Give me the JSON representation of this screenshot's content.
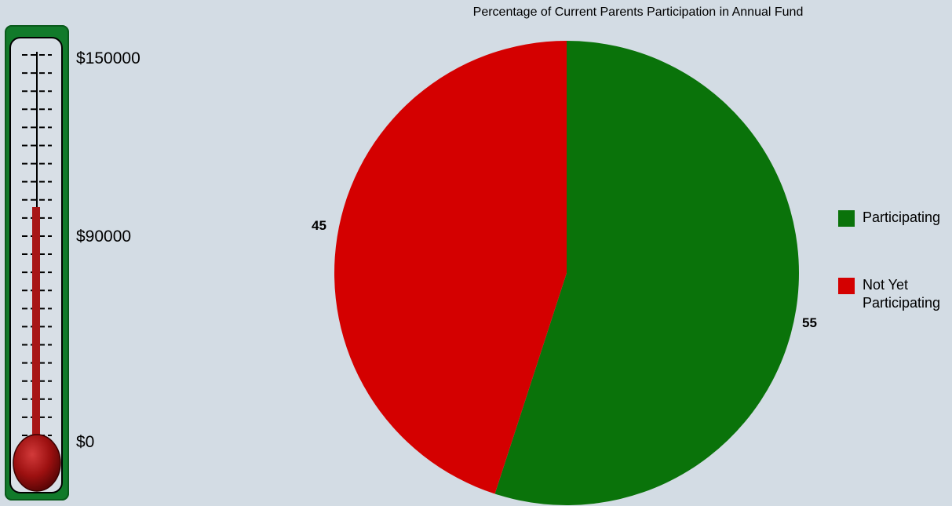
{
  "thermometer": {
    "max_label": "$150000",
    "mid_label": "$90000",
    "min_label": "$0",
    "max_value": 150000,
    "mid_value": 90000,
    "min_value": 0,
    "current_value": 90000,
    "fill_color": "#a81616",
    "frame_color": "#117a2a"
  },
  "chart_data": {
    "type": "pie",
    "title": "Percentage of Current Parents Participation in Annual Fund",
    "slices": [
      {
        "label": "Participating",
        "value": 55,
        "color": "#0a730a"
      },
      {
        "label": "Not Yet Participating",
        "value": 45,
        "color": "#d40000"
      }
    ],
    "data_labels": [
      "55",
      "45"
    ],
    "legend_position": "right",
    "start_angle_deg": 0,
    "direction": "clockwise"
  }
}
